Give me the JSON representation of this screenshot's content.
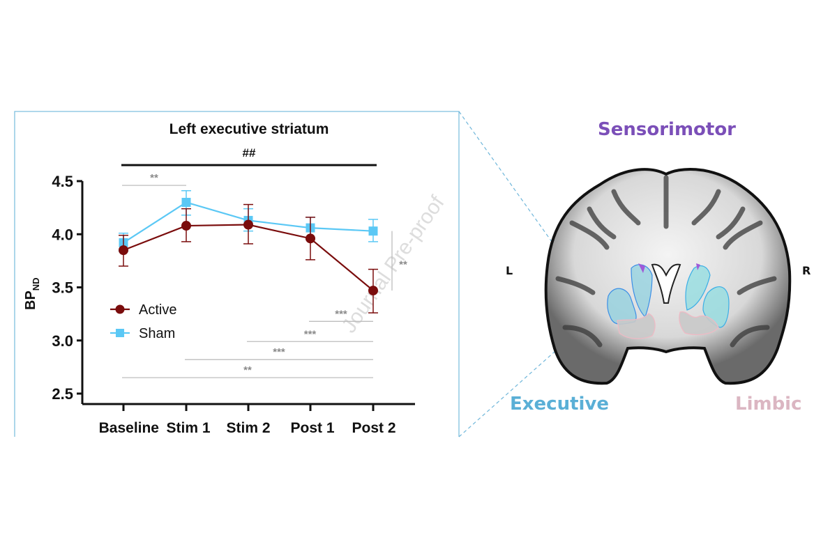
{
  "chart_data": {
    "type": "line",
    "title": "Left executive striatum",
    "xlabel": "",
    "ylabel": "BP",
    "ylabel_subscript": "ND",
    "ylim": [
      2.5,
      4.5
    ],
    "yticks": [
      "4.5",
      "4.0",
      "3.5",
      "3.0",
      "2.5"
    ],
    "ytick_values": [
      4.5,
      4.0,
      3.5,
      3.0,
      2.5
    ],
    "categories": [
      "Baseline",
      "Stim 1",
      "Stim 2",
      "Post 1",
      "Post 2"
    ],
    "grid": false,
    "legend_position": "inside-left",
    "series": [
      {
        "name": "Active",
        "color": "#7a0c0c",
        "marker": "circle",
        "values": [
          3.85,
          4.08,
          4.09,
          3.96,
          3.47
        ],
        "err_low": [
          3.7,
          3.93,
          3.91,
          3.76,
          3.26
        ],
        "err_high": [
          3.99,
          4.24,
          4.28,
          4.16,
          3.67
        ]
      },
      {
        "name": "Sham",
        "color": "#5bc8f5",
        "marker": "square",
        "values": [
          3.92,
          4.3,
          4.13,
          4.06,
          4.03
        ],
        "err_low": [
          3.84,
          4.18,
          4.03,
          3.96,
          3.93
        ],
        "err_high": [
          4.01,
          4.41,
          4.24,
          4.16,
          4.14
        ]
      }
    ],
    "annotations": {
      "group_effect": {
        "label": "##",
        "from": "Baseline",
        "to": "Post 2"
      },
      "brackets": [
        {
          "label": "**",
          "from": "Baseline",
          "to": "Stim 1",
          "y": 4.46
        },
        {
          "label": "***",
          "from": "Post 1",
          "to": "Post 2",
          "y": 3.18
        },
        {
          "label": "***",
          "from": "Stim 2",
          "to": "Post 2",
          "y": 2.99
        },
        {
          "label": "***",
          "from": "Stim 1",
          "to": "Post 2",
          "y": 2.82
        },
        {
          "label": "**",
          "from": "Baseline",
          "to": "Post 2",
          "y": 2.65
        }
      ],
      "vertical_bracket": {
        "label": "**",
        "at": "Post 2",
        "from": 4.03,
        "to": 3.47
      }
    }
  },
  "watermark": "Journal Pre-proof",
  "brain": {
    "labels": {
      "sensorimotor": "Sensorimotor",
      "executive": "Executive",
      "limbic": "Limbic",
      "left": "L",
      "right": "R"
    },
    "colors": {
      "sensorimotor": "#7b4fb8",
      "executive": "#5aafd6",
      "limbic": "#dbb6c2",
      "frame": "#7fbfdf"
    }
  }
}
